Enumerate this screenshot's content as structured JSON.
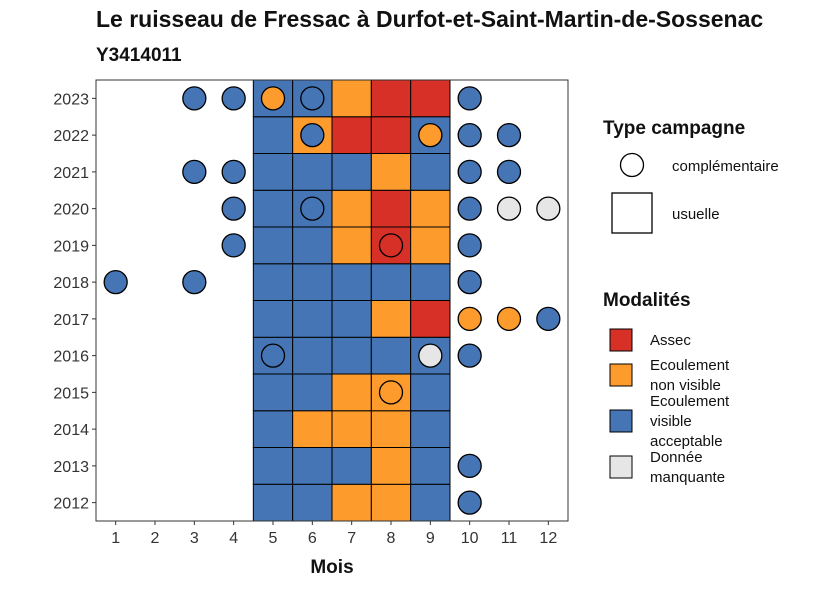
{
  "chart_data": {
    "type": "heatmap",
    "title": "Le ruisseau de Fressac à Durfot-et-Saint-Martin-de-Sossenac",
    "subtitle": "Y3414011",
    "xlabel": "Mois",
    "ylabel": "",
    "x_ticks": [
      "1",
      "2",
      "3",
      "4",
      "5",
      "6",
      "7",
      "8",
      "9",
      "10",
      "11",
      "12"
    ],
    "y_ticks": [
      "2012",
      "2013",
      "2014",
      "2015",
      "2016",
      "2017",
      "2018",
      "2019",
      "2020",
      "2021",
      "2022",
      "2023"
    ],
    "legend_campaign": {
      "title": "Type campagne",
      "items": [
        {
          "key": "complementaire",
          "label": "complémentaire",
          "shape": "circle"
        },
        {
          "key": "usuelle",
          "label": "usuelle",
          "shape": "square"
        }
      ]
    },
    "legend_modalities": {
      "title": "Modalités",
      "items": [
        {
          "key": "A",
          "lines": [
            "Assec"
          ],
          "color": "#d73027"
        },
        {
          "key": "N",
          "lines": [
            "Ecoulement",
            "non visible"
          ],
          "color": "#fd9b2d"
        },
        {
          "key": "V",
          "lines": [
            "Ecoulement",
            "visible",
            "acceptable"
          ],
          "color": "#4575b4"
        },
        {
          "key": "M",
          "lines": [
            "Donnée",
            "manquante"
          ],
          "color": "#e6e6e6"
        }
      ]
    },
    "usuelle": {
      "months": [
        5,
        6,
        7,
        8,
        9
      ],
      "rows": {
        "2023": [
          "V",
          "V",
          "N",
          "A",
          "A"
        ],
        "2022": [
          "V",
          "N",
          "A",
          "A",
          "V"
        ],
        "2021": [
          "V",
          "V",
          "V",
          "N",
          "V"
        ],
        "2020": [
          "V",
          "V",
          "N",
          "A",
          "N"
        ],
        "2019": [
          "V",
          "V",
          "N",
          "A",
          "N"
        ],
        "2018": [
          "V",
          "V",
          "V",
          "V",
          "V"
        ],
        "2017": [
          "V",
          "V",
          "V",
          "N",
          "A"
        ],
        "2016": [
          "V",
          "V",
          "V",
          "V",
          "V"
        ],
        "2015": [
          "V",
          "V",
          "N",
          "N",
          "V"
        ],
        "2014": [
          "V",
          "N",
          "N",
          "N",
          "V"
        ],
        "2013": [
          "V",
          "V",
          "V",
          "N",
          "V"
        ],
        "2012": [
          "V",
          "V",
          "N",
          "N",
          "V"
        ]
      }
    },
    "complementaire": [
      {
        "year": "2023",
        "month": 3,
        "modality": "V"
      },
      {
        "year": "2023",
        "month": 4,
        "modality": "V"
      },
      {
        "year": "2023",
        "month": 5,
        "modality": "N"
      },
      {
        "year": "2023",
        "month": 6,
        "modality": "V"
      },
      {
        "year": "2023",
        "month": 10,
        "modality": "V"
      },
      {
        "year": "2022",
        "month": 6,
        "modality": "V"
      },
      {
        "year": "2022",
        "month": 9,
        "modality": "N"
      },
      {
        "year": "2022",
        "month": 10,
        "modality": "V"
      },
      {
        "year": "2022",
        "month": 11,
        "modality": "V"
      },
      {
        "year": "2021",
        "month": 3,
        "modality": "V"
      },
      {
        "year": "2021",
        "month": 4,
        "modality": "V"
      },
      {
        "year": "2021",
        "month": 10,
        "modality": "V"
      },
      {
        "year": "2021",
        "month": 11,
        "modality": "V"
      },
      {
        "year": "2020",
        "month": 4,
        "modality": "V"
      },
      {
        "year": "2020",
        "month": 6,
        "modality": "V"
      },
      {
        "year": "2020",
        "month": 10,
        "modality": "V"
      },
      {
        "year": "2020",
        "month": 11,
        "modality": "M"
      },
      {
        "year": "2020",
        "month": 12,
        "modality": "M"
      },
      {
        "year": "2019",
        "month": 4,
        "modality": "V"
      },
      {
        "year": "2019",
        "month": 8,
        "modality": "A"
      },
      {
        "year": "2019",
        "month": 10,
        "modality": "V"
      },
      {
        "year": "2018",
        "month": 1,
        "modality": "V"
      },
      {
        "year": "2018",
        "month": 3,
        "modality": "V"
      },
      {
        "year": "2018",
        "month": 10,
        "modality": "V"
      },
      {
        "year": "2017",
        "month": 10,
        "modality": "N"
      },
      {
        "year": "2017",
        "month": 11,
        "modality": "N"
      },
      {
        "year": "2017",
        "month": 12,
        "modality": "V"
      },
      {
        "year": "2016",
        "month": 5,
        "modality": "V"
      },
      {
        "year": "2016",
        "month": 9,
        "modality": "M"
      },
      {
        "year": "2016",
        "month": 10,
        "modality": "V"
      },
      {
        "year": "2015",
        "month": 8,
        "modality": "N"
      },
      {
        "year": "2013",
        "month": 10,
        "modality": "V"
      },
      {
        "year": "2012",
        "month": 10,
        "modality": "V"
      }
    ]
  }
}
